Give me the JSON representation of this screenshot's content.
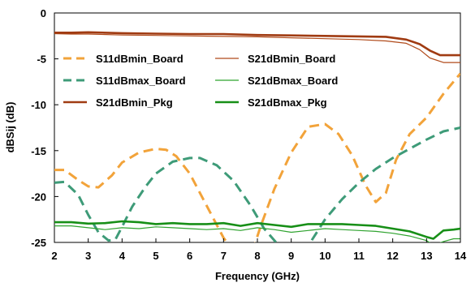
{
  "chart_data": {
    "type": "line",
    "title": "",
    "xlabel": "Frequency (GHz)",
    "ylabel": "dBSij (dB)",
    "xlim": [
      2,
      14
    ],
    "ylim": [
      -25,
      0
    ],
    "xticks": [
      "2",
      "3",
      "4",
      "5",
      "6",
      "7",
      "8",
      "9",
      "10",
      "11",
      "12",
      "13",
      "14"
    ],
    "yticks": [
      "0",
      "-5",
      "-10",
      "-15",
      "-20",
      "-25"
    ],
    "grid": false,
    "legend_placement": "upper-left, two columns",
    "series": [
      {
        "name": "S11dBmin_Board",
        "color": "#F2A33A",
        "style": "dashed-thick",
        "x": [
          2,
          2.3,
          2.7,
          3,
          3.3,
          3.7,
          4,
          4.5,
          5,
          5.3,
          5.6,
          6,
          6.5,
          7,
          7.3
        ],
        "y": [
          -17.1,
          -17.1,
          -18.2,
          -18.9,
          -19,
          -17.7,
          -16.3,
          -15.2,
          -14.8,
          -14.9,
          -15.6,
          -17.5,
          -21,
          -24.5,
          -26
        ],
        "x2": [
          7.85,
          8.1,
          8.5,
          9,
          9.5,
          10,
          10.4,
          10.8,
          11.2,
          11.5,
          11.8,
          12.1,
          12.5,
          13,
          13.5,
          14
        ],
        "y2": [
          -26,
          -23.2,
          -19.2,
          -15.2,
          -12.4,
          -12.1,
          -13.2,
          -15.5,
          -18.8,
          -20.6,
          -19.6,
          -16,
          -13.2,
          -11.4,
          -8.8,
          -6.6
        ]
      },
      {
        "name": "S11dBmax_Board",
        "color": "#3E9B78",
        "style": "dashed-thick",
        "x": [
          2,
          2.3,
          2.7,
          3,
          3.3,
          3.6,
          3.8,
          4,
          4.3,
          4.7,
          5,
          5.5,
          6,
          6.3,
          6.8,
          7.3,
          7.8,
          8.2,
          8.6,
          8.8
        ],
        "y": [
          -18.5,
          -18.4,
          -19.8,
          -22,
          -23.9,
          -24.8,
          -24.7,
          -23.3,
          -21.1,
          -18.9,
          -17.5,
          -16.2,
          -15.8,
          -15.8,
          -16.6,
          -18.3,
          -21,
          -23.5,
          -25.2,
          -26
        ],
        "x2": [
          9.3,
          9.6,
          10,
          10.5,
          11,
          11.5,
          12,
          12.5,
          13,
          13.5,
          14
        ],
        "y2": [
          -26,
          -24.8,
          -22.5,
          -20.3,
          -18.5,
          -17,
          -15.8,
          -14.8,
          -13.8,
          -12.9,
          -12.5
        ]
      },
      {
        "name": "S21dBmin_Board",
        "color": "#B04A1A",
        "style": "solid-thin",
        "x": [
          2,
          2.5,
          3,
          4,
          5,
          6,
          7,
          8,
          9,
          10,
          11,
          11.8,
          12.4,
          12.8,
          13.1,
          13.5,
          14
        ],
        "y": [
          -2.25,
          -2.3,
          -2.3,
          -2.4,
          -2.45,
          -2.5,
          -2.55,
          -2.6,
          -2.7,
          -2.8,
          -2.9,
          -3.05,
          -3.3,
          -4,
          -4.9,
          -5.4,
          -5.4
        ]
      },
      {
        "name": "S21dBmax_Board",
        "color": "#2FA32F",
        "style": "solid-thin",
        "x": [
          2,
          2.5,
          3,
          3.5,
          4,
          4.5,
          5,
          5.5,
          6,
          6.5,
          7,
          7.5,
          8,
          8.5,
          9,
          9.5,
          10,
          10.5,
          11,
          11.5,
          12,
          12.5,
          13,
          13.2,
          13.5,
          13.8,
          14
        ],
        "y": [
          -23.2,
          -23.2,
          -23.4,
          -23.6,
          -23.4,
          -23.5,
          -23.3,
          -23.4,
          -23.5,
          -23.6,
          -23.5,
          -23.7,
          -23.4,
          -23.6,
          -23.9,
          -23.7,
          -23.5,
          -23.6,
          -23.7,
          -23.8,
          -24,
          -24.3,
          -24.8,
          -25.3,
          -24.9,
          -24.6,
          -24.6
        ]
      },
      {
        "name": "S21dBmin_Pkg",
        "color": "#A03B12",
        "style": "solid-thick",
        "x": [
          2,
          2.5,
          3,
          4,
          5,
          6,
          7,
          8,
          9,
          10,
          11,
          11.8,
          12.4,
          12.8,
          13.1,
          13.4,
          13.7,
          14
        ],
        "y": [
          -2.15,
          -2.15,
          -2.1,
          -2.2,
          -2.25,
          -2.3,
          -2.3,
          -2.4,
          -2.45,
          -2.5,
          -2.55,
          -2.6,
          -2.9,
          -3.4,
          -4.1,
          -4.6,
          -4.6,
          -4.6
        ]
      },
      {
        "name": "S21dBmax_Pkg",
        "color": "#178F17",
        "style": "solid-thick",
        "x": [
          2,
          2.5,
          3,
          3.5,
          4,
          4.5,
          5,
          5.5,
          6,
          6.5,
          7,
          7.5,
          8,
          8.5,
          9,
          9.5,
          10,
          10.5,
          11,
          11.5,
          12,
          12.5,
          13,
          13.2,
          13.5,
          13.8,
          14
        ],
        "y": [
          -22.8,
          -22.8,
          -22.95,
          -22.9,
          -22.7,
          -22.8,
          -23,
          -22.9,
          -23,
          -23,
          -22.9,
          -23.2,
          -22.9,
          -23.1,
          -23.3,
          -23,
          -23,
          -23,
          -23.1,
          -23.2,
          -23.5,
          -23.8,
          -24.4,
          -24.6,
          -23.7,
          -23.6,
          -23.5
        ]
      }
    ]
  }
}
